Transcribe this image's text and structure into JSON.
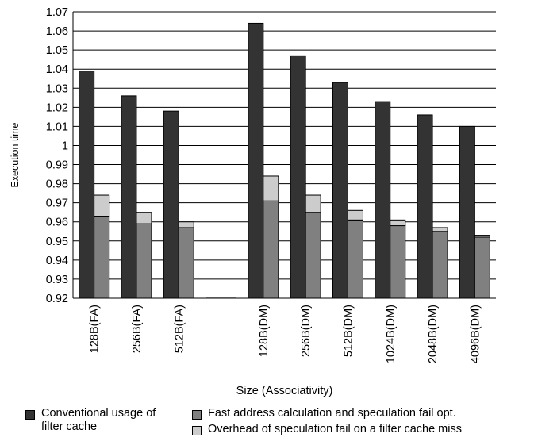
{
  "chart_data": {
    "type": "bar",
    "title": "",
    "xlabel": "Size (Associativity)",
    "ylabel": "Execution time",
    "ylim": [
      0.92,
      1.07
    ],
    "yticks": [
      "1.07",
      "1.06",
      "1.05",
      "1.04",
      "1.03",
      "1.02",
      "1.01",
      "1",
      "0.99",
      "0.98",
      "0.97",
      "0.96",
      "0.95",
      "0.94",
      "0.93",
      "0.92"
    ],
    "categories": [
      "128B(FA)",
      "256B(FA)",
      "512B(FA)",
      "",
      "128B(DM)",
      "256B(DM)",
      "512B(DM)",
      "1024B(DM)",
      "2048B(DM)",
      "4096B(DM)"
    ],
    "series": [
      {
        "name": "Conventional usage of filter cache",
        "color": "#333333",
        "stacked": false,
        "values": [
          1.039,
          1.026,
          1.018,
          null,
          1.064,
          1.047,
          1.033,
          1.023,
          1.016,
          1.01
        ]
      },
      {
        "name": "Fast address calculation and speculation fail opt.",
        "color": "#808080",
        "stack": "b",
        "values": [
          0.963,
          0.959,
          0.957,
          null,
          0.971,
          0.965,
          0.961,
          0.958,
          0.955,
          0.952
        ]
      },
      {
        "name": "Overhead of speculation fail on a filter cache miss",
        "color": "#cccccc",
        "stack": "b",
        "stacked_on_top": true,
        "values": [
          0.974,
          0.965,
          0.96,
          null,
          0.984,
          0.974,
          0.966,
          0.961,
          0.957,
          0.953
        ]
      }
    ],
    "grid": true,
    "legend_position": "bottom"
  },
  "legend": {
    "item1_line1": "Conventional usage of",
    "item1_line2": "filter cache",
    "item2": "Fast address calculation and speculation fail opt.",
    "item3": "Overhead of speculation fail on a filter cache miss"
  }
}
